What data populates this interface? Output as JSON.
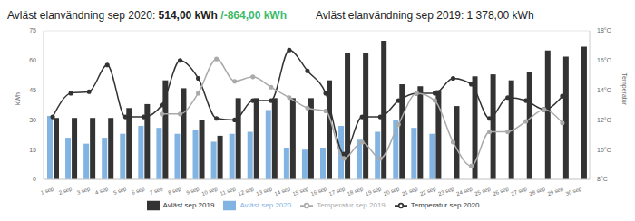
{
  "chart_data": {
    "type": "bar",
    "title": "Avläst elanvändning sep 2020: 514,00 kWh",
    "annotations": [
      {
        "text": "/-864,00 kWh",
        "color": "#3dbb6b"
      }
    ],
    "subtitle": "Avläst elanvändning sep 2019: 1 378,00 kWh",
    "y_label": "kWh",
    "y2_label": "Temperatur",
    "categories": [
      "1 sep",
      "2 sep",
      "3 sep",
      "4 sep",
      "5 sep",
      "6 sep",
      "7 sep",
      "8 sep",
      "9 sep",
      "10 sep",
      "11 sep",
      "12 sep",
      "13 sep",
      "14 sep",
      "15 sep",
      "16 sep",
      "17 sep",
      "18 sep",
      "19 sep",
      "20 sep",
      "21 sep",
      "22 sep",
      "23 sep",
      "24 sep",
      "25 sep",
      "26 sep",
      "27 sep",
      "28 sep",
      "29 sep",
      "30 sep"
    ],
    "series": [
      {
        "name": "Avläst sep 2020",
        "type": "bar",
        "color": "#82b4e3",
        "values": [
          32,
          21,
          18,
          21,
          23,
          27,
          26,
          23,
          25,
          19,
          23,
          24,
          35,
          16,
          15,
          16,
          27,
          20,
          24,
          30,
          26,
          23,
          null,
          null,
          null,
          null,
          null,
          null,
          null,
          null
        ]
      },
      {
        "name": "Avläst sep 2019",
        "type": "bar",
        "color": "#333333",
        "values": [
          31,
          31,
          31,
          31,
          36,
          38,
          50,
          46,
          30,
          22,
          41,
          41,
          41,
          41,
          41,
          50,
          64,
          64,
          70,
          48,
          47,
          45,
          37,
          52,
          53,
          50,
          54,
          65,
          62,
          67
        ]
      },
      {
        "name": "Temperatur sep 2020",
        "type": "line",
        "axis": "y2",
        "color": "#333333",
        "marker": "circle",
        "values": [
          12.2,
          13.8,
          13.9,
          15.7,
          12.2,
          12.2,
          13.0,
          16.0,
          14.8,
          12.1,
          12.0,
          13.3,
          13.3,
          16.7,
          15.3,
          13.8,
          9.7,
          12.2,
          12.2,
          13.3,
          13.8,
          13.8,
          14.8,
          14.4,
          12.1,
          13.5,
          13.3,
          12.7,
          13.6,
          null
        ]
      },
      {
        "name": "Temperatur sep 2019",
        "type": "line",
        "axis": "y2",
        "color": "#aaaaaa",
        "marker": "circle",
        "values": [
          null,
          null,
          null,
          null,
          null,
          null,
          12.4,
          12.4,
          13.8,
          16.1,
          14.6,
          14.9,
          14.2,
          13.5,
          12.8,
          12.6,
          9.4,
          10.5,
          9.4,
          11.7,
          13.8,
          13.3,
          10.5,
          8.9,
          11.2,
          11.2,
          11.9,
          12.7,
          11.8,
          null
        ]
      }
    ],
    "ylim": [
      0,
      75
    ],
    "yticks": [
      0,
      15,
      30,
      45,
      60,
      75
    ],
    "y2lim": [
      8,
      18
    ],
    "y2ticks": [
      {
        "value": 8,
        "label": "8°C"
      },
      {
        "value": 10,
        "label": "10°C"
      },
      {
        "value": 12,
        "label": "12°C"
      },
      {
        "value": 14,
        "label": "14°C"
      },
      {
        "value": 16,
        "label": "16°C"
      },
      {
        "value": 18,
        "label": "18°C"
      }
    ],
    "grid": true,
    "legend": "bottom"
  }
}
